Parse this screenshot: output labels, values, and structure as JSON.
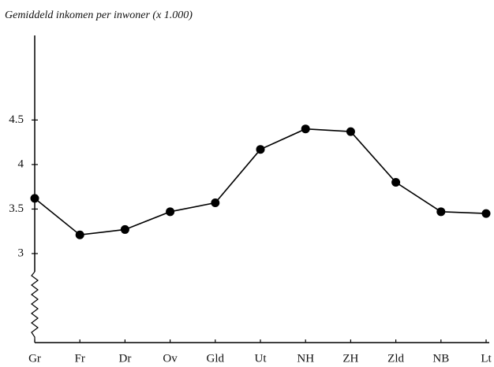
{
  "chart_data": {
    "type": "line",
    "title": "Gemiddeld inkomen per inwoner (x 1.000)",
    "categories": [
      "Gr",
      "Fr",
      "Dr",
      "Ov",
      "Gld",
      "Ut",
      "NH",
      "ZH",
      "Zld",
      "NB",
      "Lt"
    ],
    "values": [
      3.62,
      3.21,
      3.27,
      3.47,
      3.57,
      4.17,
      4.4,
      4.37,
      3.8,
      3.47,
      3.45
    ],
    "color": "#000000",
    "ylim": [
      2.0,
      5.45
    ],
    "yticks": [
      3,
      3.5,
      4,
      4.5
    ],
    "grid": false
  }
}
